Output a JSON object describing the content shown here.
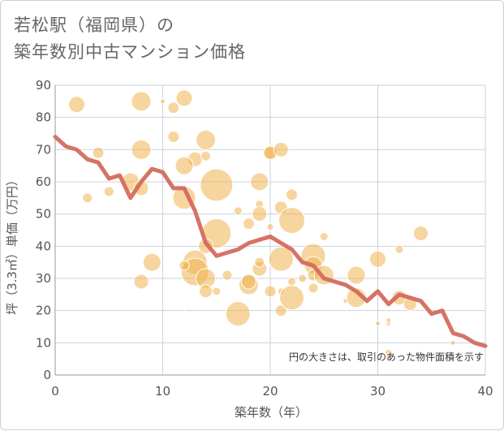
{
  "header": {
    "title_line1": "若松駅（福岡県）の",
    "title_line2": "築年数別中古マンション価格"
  },
  "chart_data": {
    "type": "scatter",
    "title": "若松駅（福岡県）の築年数別中古マンション価格",
    "xlabel": "築年数（年）",
    "ylabel": "坪（3.3㎡）単価（万円）",
    "xlim": [
      0,
      40
    ],
    "ylim": [
      0,
      90
    ],
    "x_ticks": [
      "0",
      "10",
      "20",
      "30",
      "40"
    ],
    "y_ticks": [
      "0",
      "10",
      "20",
      "30",
      "40",
      "50",
      "60",
      "70",
      "80",
      "90"
    ],
    "grid": true,
    "note": "円の大きさは、取引のあった物件面積を示す",
    "colors": {
      "bubble": "#f0b24f",
      "line": "#d36c5c",
      "grid": "#c8d2df"
    },
    "bubbles": [
      {
        "x": 2,
        "y": 84,
        "s": 10
      },
      {
        "x": 8,
        "y": 85,
        "s": 12
      },
      {
        "x": 10,
        "y": 85,
        "s": 3
      },
      {
        "x": 11,
        "y": 83,
        "s": 7
      },
      {
        "x": 12,
        "y": 86,
        "s": 10
      },
      {
        "x": 4,
        "y": 69,
        "s": 7
      },
      {
        "x": 8,
        "y": 70,
        "s": 12
      },
      {
        "x": 11,
        "y": 74,
        "s": 7
      },
      {
        "x": 14,
        "y": 73,
        "s": 12
      },
      {
        "x": 13,
        "y": 67,
        "s": 9
      },
      {
        "x": 14,
        "y": 68,
        "s": 6
      },
      {
        "x": 12,
        "y": 65,
        "s": 11
      },
      {
        "x": 20,
        "y": 69,
        "s": 9
      },
      {
        "x": 20,
        "y": 69,
        "s": 8
      },
      {
        "x": 21,
        "y": 70,
        "s": 9
      },
      {
        "x": 3,
        "y": 55,
        "s": 6
      },
      {
        "x": 5,
        "y": 57,
        "s": 6
      },
      {
        "x": 7,
        "y": 60,
        "s": 11
      },
      {
        "x": 8,
        "y": 58,
        "s": 9
      },
      {
        "x": 12,
        "y": 55,
        "s": 14
      },
      {
        "x": 15,
        "y": 59,
        "s": 20
      },
      {
        "x": 19,
        "y": 60,
        "s": 11
      },
      {
        "x": 22,
        "y": 56,
        "s": 7
      },
      {
        "x": 19,
        "y": 53,
        "s": 5
      },
      {
        "x": 19,
        "y": 50,
        "s": 9
      },
      {
        "x": 21,
        "y": 52,
        "s": 8
      },
      {
        "x": 22,
        "y": 48,
        "s": 16
      },
      {
        "x": 17,
        "y": 51,
        "s": 5
      },
      {
        "x": 18,
        "y": 47,
        "s": 7
      },
      {
        "x": 15,
        "y": 44,
        "s": 18
      },
      {
        "x": 14,
        "y": 40,
        "s": 9
      },
      {
        "x": 20,
        "y": 46,
        "s": 4
      },
      {
        "x": 25,
        "y": 43,
        "s": 5
      },
      {
        "x": 34,
        "y": 44,
        "s": 9
      },
      {
        "x": 9,
        "y": 35,
        "s": 11
      },
      {
        "x": 8,
        "y": 29,
        "s": 9
      },
      {
        "x": 13,
        "y": 35,
        "s": 15
      },
      {
        "x": 13,
        "y": 32,
        "s": 17
      },
      {
        "x": 14,
        "y": 30,
        "s": 12
      },
      {
        "x": 12,
        "y": 34,
        "s": 6
      },
      {
        "x": 14,
        "y": 26,
        "s": 8
      },
      {
        "x": 15,
        "y": 26,
        "s": 5
      },
      {
        "x": 16,
        "y": 31,
        "s": 6
      },
      {
        "x": 17,
        "y": 19,
        "s": 15
      },
      {
        "x": 18,
        "y": 28,
        "s": 12
      },
      {
        "x": 18,
        "y": 29,
        "s": 9
      },
      {
        "x": 19,
        "y": 33,
        "s": 9
      },
      {
        "x": 19,
        "y": 35,
        "s": 6
      },
      {
        "x": 20,
        "y": 26,
        "s": 7
      },
      {
        "x": 21,
        "y": 36,
        "s": 15
      },
      {
        "x": 21,
        "y": 20,
        "s": 7
      },
      {
        "x": 21,
        "y": 26,
        "s": 4
      },
      {
        "x": 22,
        "y": 24,
        "s": 15
      },
      {
        "x": 22,
        "y": 29,
        "s": 5
      },
      {
        "x": 23,
        "y": 30,
        "s": 5
      },
      {
        "x": 24,
        "y": 37,
        "s": 15
      },
      {
        "x": 24,
        "y": 34,
        "s": 11
      },
      {
        "x": 24,
        "y": 31,
        "s": 7
      },
      {
        "x": 24,
        "y": 27,
        "s": 6
      },
      {
        "x": 25,
        "y": 31,
        "s": 12
      },
      {
        "x": 27,
        "y": 23,
        "s": 3
      },
      {
        "x": 27,
        "y": 12,
        "s": 1
      },
      {
        "x": 28,
        "y": 31,
        "s": 11
      },
      {
        "x": 28,
        "y": 24,
        "s": 12
      },
      {
        "x": 30,
        "y": 36,
        "s": 10
      },
      {
        "x": 30,
        "y": 16,
        "s": 3
      },
      {
        "x": 31,
        "y": 16,
        "s": 3
      },
      {
        "x": 31,
        "y": 17,
        "s": 3
      },
      {
        "x": 32,
        "y": 39,
        "s": 5
      },
      {
        "x": 32,
        "y": 24,
        "s": 9
      },
      {
        "x": 33,
        "y": 22,
        "s": 8
      },
      {
        "x": 31,
        "y": 7,
        "s": 4
      },
      {
        "x": 31,
        "y": 6,
        "s": 3
      },
      {
        "x": 37,
        "y": 10,
        "s": 3
      },
      {
        "x": 12,
        "y": 20,
        "s": 1
      }
    ],
    "series": [
      {
        "x": [
          0,
          1,
          2,
          3,
          4,
          5,
          6,
          7,
          8,
          9,
          10,
          11,
          12,
          13,
          14,
          15,
          16,
          17,
          18,
          19,
          20,
          21,
          22,
          23,
          24,
          25,
          26,
          27,
          28,
          29,
          30,
          31,
          32,
          33,
          34,
          35,
          36,
          37,
          38,
          39,
          40
        ],
        "values": [
          74,
          71,
          70,
          67,
          66,
          61,
          62,
          55,
          60,
          64,
          63,
          58,
          58,
          51,
          41,
          37,
          38,
          39,
          41,
          42,
          43,
          41,
          39,
          35,
          34,
          30,
          29,
          28,
          26,
          23,
          26,
          22,
          25,
          24,
          23,
          19,
          20,
          13,
          12,
          10,
          9
        ]
      }
    ]
  }
}
